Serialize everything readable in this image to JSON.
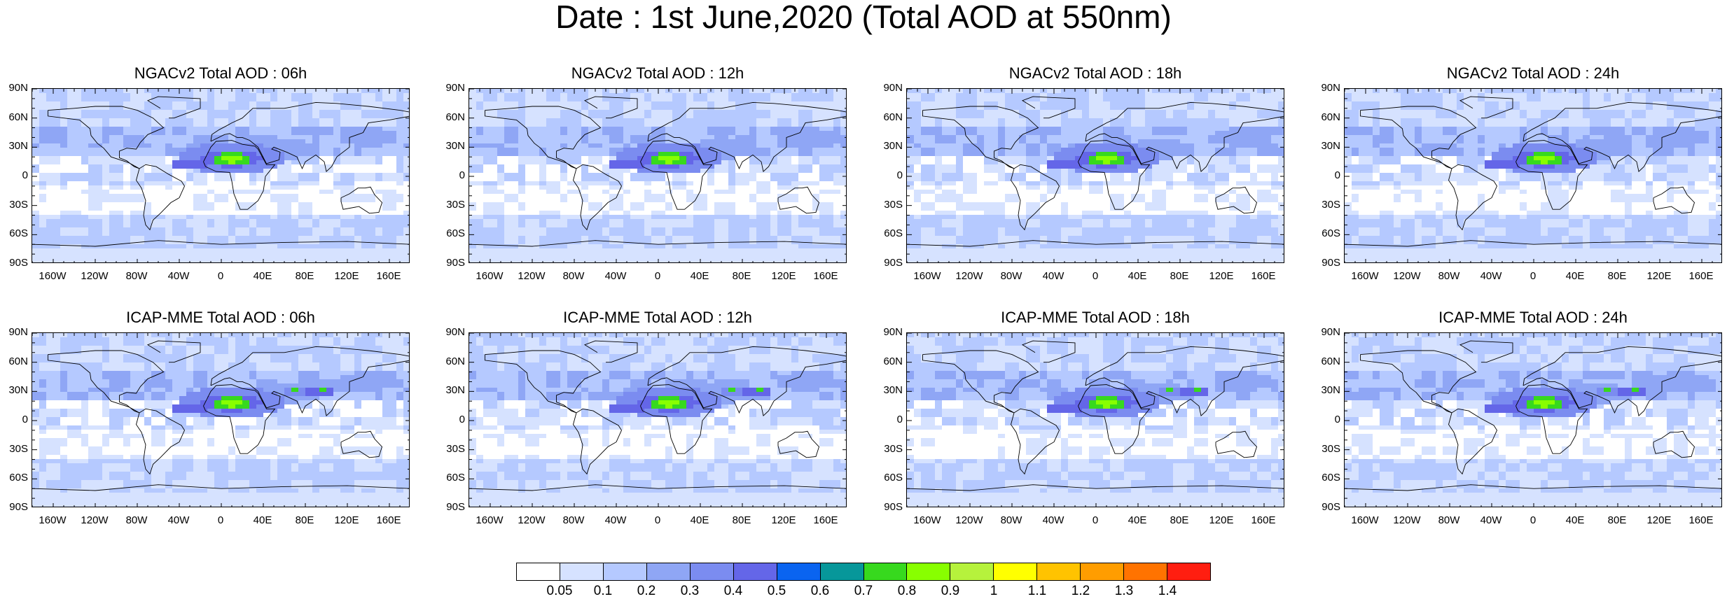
{
  "title": "Date : 1st June,2020 (Total AOD at 550nm)",
  "panels": [
    {
      "title": "NGACv2 Total AOD : 06h",
      "model": "NGACv2"
    },
    {
      "title": "NGACv2 Total AOD : 12h",
      "model": "NGACv2"
    },
    {
      "title": "NGACv2 Total AOD : 18h",
      "model": "NGACv2"
    },
    {
      "title": "NGACv2 Total AOD : 24h",
      "model": "NGACv2"
    },
    {
      "title": "ICAP-MME Total AOD : 06h",
      "model": "ICAP-MME"
    },
    {
      "title": "ICAP-MME Total AOD : 12h",
      "model": "ICAP-MME"
    },
    {
      "title": "ICAP-MME Total AOD : 18h",
      "model": "ICAP-MME"
    },
    {
      "title": "ICAP-MME Total AOD : 24h",
      "model": "ICAP-MME"
    }
  ],
  "lat_labels": [
    "90N",
    "60N",
    "30N",
    "0",
    "30S",
    "60S",
    "90S"
  ],
  "lon_labels": [
    "160W",
    "120W",
    "80W",
    "40W",
    "0",
    "40E",
    "80E",
    "120E",
    "160E"
  ],
  "lon_label_values": [
    -160,
    -120,
    -80,
    -40,
    0,
    40,
    80,
    120,
    160
  ],
  "colorbar": {
    "levels": [
      "0.05",
      "0.1",
      "0.2",
      "0.3",
      "0.4",
      "0.5",
      "0.6",
      "0.7",
      "0.8",
      "0.9",
      "1",
      "1.1",
      "1.2",
      "1.3",
      "1.4"
    ],
    "colors": [
      "#ffffff",
      "#d6e2ff",
      "#b5c9ff",
      "#8fa6f5",
      "#7b8cf0",
      "#6466e8",
      "#0a64f0",
      "#07979a",
      "#37d91e",
      "#88ff00",
      "#b6f23c",
      "#ffff00",
      "#ffc300",
      "#ff9d00",
      "#ff7300",
      "#ff1e10"
    ]
  }
}
